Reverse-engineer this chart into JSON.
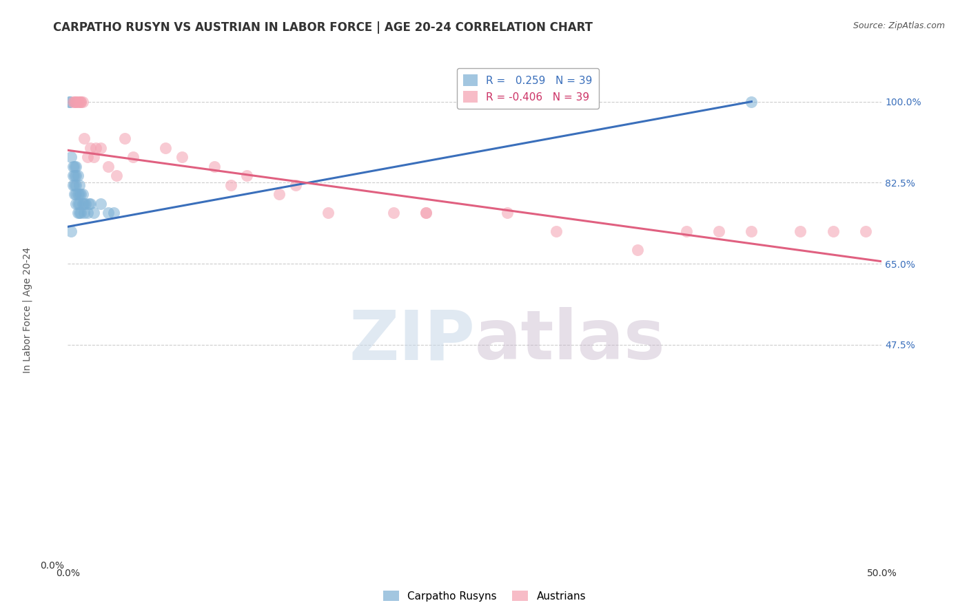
{
  "title": "CARPATHO RUSYN VS AUSTRIAN IN LABOR FORCE | AGE 20-24 CORRELATION CHART",
  "source": "Source: ZipAtlas.com",
  "ylabel": "In Labor Force | Age 20-24",
  "xlim": [
    0.0,
    0.5
  ],
  "ylim": [
    0.0,
    1.1
  ],
  "yticks_right": [
    0.475,
    0.65,
    0.825,
    1.0
  ],
  "ytick_labels_right": [
    "47.5%",
    "65.0%",
    "82.5%",
    "100.0%"
  ],
  "xtick_positions": [
    0.0,
    0.1,
    0.2,
    0.3,
    0.4,
    0.5
  ],
  "xtick_labels": [
    "0.0%",
    "",
    "",
    "",
    "",
    "50.0%"
  ],
  "ytick_left_pos": [
    0.0
  ],
  "ytick_left_labels": [
    "0.0%"
  ],
  "grid_color": "#cccccc",
  "background_color": "#ffffff",
  "blue_color": "#7bafd4",
  "pink_color": "#f4a0b0",
  "blue_line_color": "#3a6fbb",
  "pink_line_color": "#e06080",
  "blue_scatter_x": [
    0.001,
    0.001,
    0.002,
    0.003,
    0.003,
    0.003,
    0.004,
    0.004,
    0.004,
    0.004,
    0.005,
    0.005,
    0.005,
    0.005,
    0.005,
    0.006,
    0.006,
    0.006,
    0.006,
    0.007,
    0.007,
    0.007,
    0.007,
    0.008,
    0.008,
    0.009,
    0.009,
    0.01,
    0.01,
    0.011,
    0.012,
    0.013,
    0.014,
    0.016,
    0.02,
    0.025,
    0.028,
    0.002,
    0.42
  ],
  "blue_scatter_y": [
    1.0,
    1.0,
    0.88,
    0.82,
    0.84,
    0.86,
    0.8,
    0.82,
    0.84,
    0.86,
    0.78,
    0.8,
    0.82,
    0.84,
    0.86,
    0.76,
    0.78,
    0.8,
    0.84,
    0.76,
    0.78,
    0.8,
    0.82,
    0.76,
    0.8,
    0.78,
    0.8,
    0.76,
    0.78,
    0.78,
    0.76,
    0.78,
    0.78,
    0.76,
    0.78,
    0.76,
    0.76,
    0.72,
    1.0
  ],
  "pink_scatter_x": [
    0.003,
    0.004,
    0.005,
    0.005,
    0.006,
    0.007,
    0.008,
    0.008,
    0.009,
    0.01,
    0.012,
    0.014,
    0.016,
    0.017,
    0.02,
    0.025,
    0.03,
    0.035,
    0.04,
    0.06,
    0.07,
    0.09,
    0.1,
    0.11,
    0.13,
    0.14,
    0.16,
    0.2,
    0.22,
    0.27,
    0.3,
    0.35,
    0.38,
    0.4,
    0.42,
    0.45,
    0.47,
    0.49,
    0.22
  ],
  "pink_scatter_y": [
    1.0,
    1.0,
    1.0,
    1.0,
    1.0,
    1.0,
    1.0,
    1.0,
    1.0,
    0.92,
    0.88,
    0.9,
    0.88,
    0.9,
    0.9,
    0.86,
    0.84,
    0.92,
    0.88,
    0.9,
    0.88,
    0.86,
    0.82,
    0.84,
    0.8,
    0.82,
    0.76,
    0.76,
    0.76,
    0.76,
    0.72,
    0.68,
    0.72,
    0.72,
    0.72,
    0.72,
    0.72,
    0.72,
    0.76
  ],
  "blue_line_x": [
    0.0,
    0.42
  ],
  "blue_line_y": [
    0.73,
    1.0
  ],
  "pink_line_x": [
    0.0,
    0.5
  ],
  "pink_line_y": [
    0.895,
    0.655
  ],
  "legend_blue_label": "R =   0.259   N = 39",
  "legend_pink_label": "R = -0.406   N = 39",
  "legend_carpatho": "Carpatho Rusyns",
  "legend_austrians": "Austrians",
  "watermark_zip": "ZIP",
  "watermark_atlas": "atlas",
  "title_fontsize": 12,
  "axis_label_fontsize": 10,
  "tick_fontsize": 10,
  "source_fontsize": 9,
  "right_tick_color": "#3a6fbb"
}
